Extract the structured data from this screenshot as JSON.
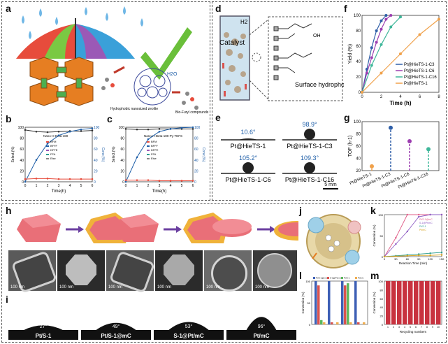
{
  "panel_labels": {
    "a": "a",
    "b": "b",
    "c": "c",
    "d": "d",
    "e": "e",
    "f": "f",
    "g": "g",
    "h": "h",
    "i": "i",
    "j": "j",
    "k": "k",
    "l": "l",
    "m": "m"
  },
  "panel_a": {
    "caption_zeolite": "Hydrophobic nanosized zeolite",
    "caption_biofuryl": "Bio-Furyl compounds",
    "water_label": "H2O"
  },
  "panel_b": {
    "title": "Nano-H-Beta-180",
    "legend": [
      "BFM",
      "BFFF",
      "DFFE",
      "FFA",
      "Else"
    ],
    "ylabel_left": "Select.(%)",
    "ylabel_right": "Conv.(%)",
    "xlabel": "Time(h)"
  },
  "panel_c": {
    "title": "Nano-H-Beta-180-Py-TEFS",
    "legend": [
      "BFM",
      "BFFF",
      "DFFE",
      "FFA",
      "Else"
    ],
    "ylabel_left": "Select.(%)",
    "ylabel_right": "Conv.(%)",
    "xlabel": "Time(h)"
  },
  "panel_d": {
    "catalyst": "Catalyst",
    "h2": "H2",
    "surface_text": "Surface hydrophobization",
    "oh": "OH"
  },
  "panel_e": {
    "drops": [
      {
        "angle": "10.6°",
        "name": "Pt@HieTS-1"
      },
      {
        "angle": "98.9°",
        "name": "Pt@HieTS-1-C3"
      },
      {
        "angle": "105.2°",
        "name": "Pt@HieTS-1-C6"
      },
      {
        "angle": "109.3°",
        "name": "Pt@HieTS-1-C16"
      }
    ],
    "scale": "5 mm"
  },
  "panel_f": {
    "xlabel": "Time (h)",
    "ylabel": "Yield (%)",
    "legend": [
      "Pt@HieTS-1-C3",
      "Pt@HieTS-1-C6",
      "Pt@HieTS-1-C16",
      "Pt@HieTS-1"
    ],
    "colors": [
      "#2f5fa8",
      "#9c3db0",
      "#3fb79a",
      "#f0a14a"
    ]
  },
  "panel_g": {
    "ylabel": "TOF (h-1)",
    "categories": [
      "Pt@HieTS-1",
      "Pt@HieTS-1-C3",
      "Pt@HieTS-1-C6",
      "Pt@HieTS-1-C16"
    ],
    "colors": [
      "#f0a14a",
      "#2f5fa8",
      "#9c3db0",
      "#3fb79a"
    ]
  },
  "panel_h": {
    "scalebars": [
      "100 nm",
      "100 nm",
      "100 nm",
      "100 nm",
      "100 nm",
      "100 nm"
    ]
  },
  "panel_i": {
    "drops": [
      {
        "angle": "27°",
        "name": "Pt/S-1"
      },
      {
        "angle": "49°",
        "name": "Pt/S-1@mC"
      },
      {
        "angle": "53°",
        "name": "S-1@Pt/mC"
      },
      {
        "angle": "96°",
        "name": "Pt/mC"
      }
    ]
  },
  "panel_k": {
    "xlabel": "Reaction Time (min)",
    "ylabel": "Conversion (%)",
    "legend": [
      "Pt/S-1@mC",
      "S-1@Pt/mC",
      "Pt/S-1",
      "Pt/mC"
    ]
  },
  "panel_l": {
    "ylabel": "Conversion (%)",
    "legend": [
      "Pt/S-1@mC",
      "S-1@Pt/mC",
      "Pt/S-1",
      "Pt/mC"
    ]
  },
  "panel_m": {
    "xlabel": "Recycling numbers",
    "ylabel": "Conversion (%)"
  },
  "chart_data": [
    {
      "type": "line",
      "panel": "b",
      "title": "Nano-H-Beta-180",
      "xlabel": "Time(h)",
      "x": [
        0,
        1,
        2,
        3,
        4,
        5,
        6
      ],
      "series": [
        {
          "name": "BFM",
          "values": [
            95,
            92,
            91,
            92,
            93,
            93,
            94
          ]
        },
        {
          "name": "Conv.",
          "values": [
            0,
            40,
            70,
            85,
            92,
            96,
            98
          ]
        },
        {
          "name": "Else",
          "values": [
            5,
            6,
            6,
            5,
            5,
            5,
            5
          ]
        }
      ],
      "xlim": [
        0,
        6
      ],
      "ylim": [
        0,
        100
      ]
    },
    {
      "type": "line",
      "panel": "c",
      "title": "Nano-H-Beta-180-Py-TEFS",
      "xlabel": "Time(h)",
      "x": [
        0,
        1,
        2,
        3,
        4,
        5,
        6
      ],
      "series": [
        {
          "name": "BFM",
          "values": [
            97,
            96,
            96,
            97,
            97,
            97,
            97
          ]
        },
        {
          "name": "Conv.",
          "values": [
            0,
            45,
            78,
            92,
            97,
            99,
            100
          ]
        },
        {
          "name": "Else",
          "values": [
            3,
            3,
            3,
            2,
            2,
            2,
            2
          ]
        }
      ],
      "xlim": [
        0,
        6
      ],
      "ylim": [
        0,
        100
      ]
    },
    {
      "type": "line",
      "panel": "f",
      "xlabel": "Time (h)",
      "ylabel": "Yield (%)",
      "xlim": [
        0,
        8
      ],
      "ylim": [
        0,
        100
      ],
      "series": [
        {
          "name": "Pt@HieTS-1-C3",
          "x": [
            0,
            0.5,
            1,
            1.5,
            2,
            2.5
          ],
          "values": [
            0,
            30,
            58,
            80,
            93,
            100
          ]
        },
        {
          "name": "Pt@HieTS-1-C6",
          "x": [
            0,
            0.5,
            1,
            1.5,
            2,
            2.5,
            3
          ],
          "values": [
            0,
            25,
            45,
            65,
            82,
            95,
            100
          ]
        },
        {
          "name": "Pt@HieTS-1-C16",
          "x": [
            0,
            1,
            2,
            3,
            4
          ],
          "values": [
            0,
            35,
            62,
            85,
            98
          ]
        },
        {
          "name": "Pt@HieTS-1",
          "x": [
            0,
            2,
            4,
            6,
            8
          ],
          "values": [
            0,
            25,
            50,
            75,
            95
          ]
        }
      ]
    },
    {
      "type": "scatter",
      "panel": "g",
      "ylabel": "TOF (h-1)",
      "categories": [
        "Pt@HieTS-1",
        "Pt@HieTS-1-C3",
        "Pt@HieTS-1-C6",
        "Pt@HieTS-1-C16"
      ],
      "values": [
        27,
        90,
        68,
        55
      ]
    },
    {
      "type": "line",
      "panel": "k",
      "xlabel": "Reaction Time (min)",
      "ylabel": "Conversion (%)",
      "xlim": [
        0,
        150
      ],
      "ylim": [
        0,
        100
      ],
      "series": [
        {
          "name": "Pt/S-1@mC",
          "x": [
            0,
            30,
            60,
            90,
            120,
            150
          ],
          "values": [
            0,
            45,
            100,
            100,
            100,
            100
          ]
        },
        {
          "name": "S-1@Pt/mC",
          "x": [
            0,
            30,
            60,
            90,
            120,
            150
          ],
          "values": [
            0,
            30,
            60,
            95,
            100,
            100
          ]
        },
        {
          "name": "Pt/S-1",
          "x": [
            0,
            30,
            60,
            90,
            120,
            150
          ],
          "values": [
            0,
            2,
            4,
            6,
            8,
            10
          ]
        },
        {
          "name": "Pt/mC",
          "x": [
            0,
            30,
            60,
            90,
            120,
            150
          ],
          "values": [
            0,
            1,
            2,
            3,
            3,
            4
          ]
        }
      ]
    },
    {
      "type": "bar",
      "panel": "l",
      "ylabel": "Conversion (%)",
      "ylim": [
        0,
        100
      ],
      "categories": [
        "1",
        "2",
        "3",
        "4"
      ],
      "series": [
        {
          "name": "Pt/S-1@mC",
          "values": [
            100,
            100,
            100,
            100
          ]
        },
        {
          "name": "S-1@Pt/mC",
          "values": [
            90,
            5,
            90,
            5
          ]
        },
        {
          "name": "Pt/S-1",
          "values": [
            10,
            0,
            95,
            0
          ]
        },
        {
          "name": "Pt/mC",
          "values": [
            5,
            5,
            5,
            5
          ]
        }
      ]
    },
    {
      "type": "bar",
      "panel": "m",
      "xlabel": "Recycling numbers",
      "ylabel": "Conversion (%)",
      "ylim": [
        0,
        100
      ],
      "categories": [
        "1",
        "2",
        "3",
        "4",
        "5",
        "6",
        "7",
        "8",
        "9",
        "10"
      ],
      "values": [
        100,
        100,
        100,
        100,
        100,
        100,
        100,
        100,
        100,
        100
      ]
    }
  ]
}
